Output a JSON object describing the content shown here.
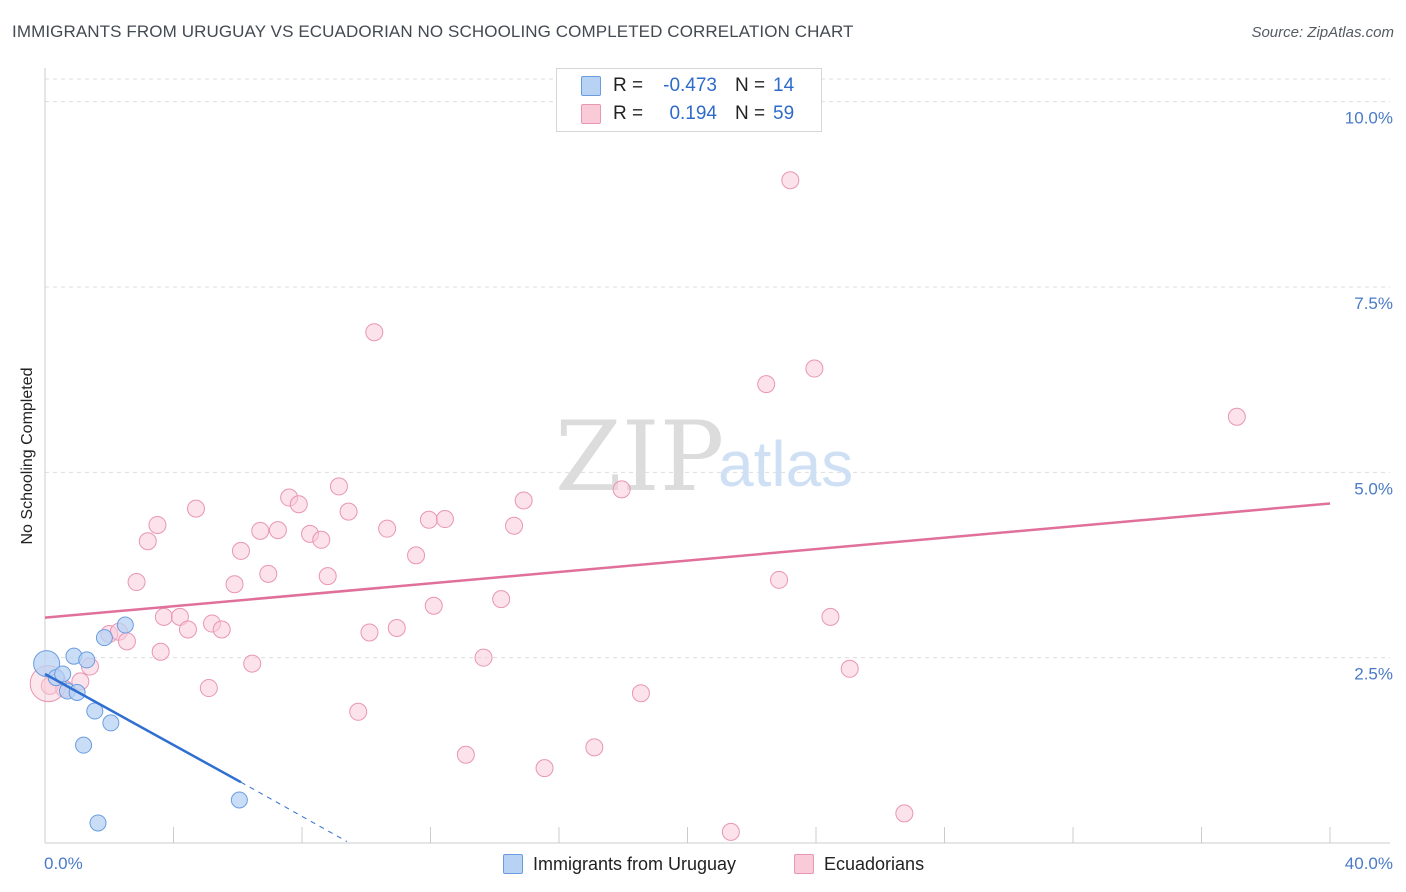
{
  "title": "IMMIGRANTS FROM URUGUAY VS ECUADORIAN NO SCHOOLING COMPLETED CORRELATION CHART",
  "source": "Source: ZipAtlas.com",
  "watermark": {
    "zip": "ZIP",
    "atlas": "atlas"
  },
  "legend": {
    "series": [
      {
        "r_label": "R =",
        "r_value": "-0.473",
        "n_label": "N =",
        "n_value": "14"
      },
      {
        "r_label": "R =",
        "r_value": "0.194",
        "n_label": "N =",
        "n_value": "59"
      }
    ]
  },
  "bottom_legend": [
    "Immigrants from Uruguay",
    "Ecuadorians"
  ],
  "colors": {
    "uruguay_fill": "#b8d2f4",
    "uruguay_stroke": "#6a9de0",
    "uruguay_line": "#2f6fd1",
    "ecuador_fill": "#f9cad8",
    "ecuador_stroke": "#e996b3",
    "ecuador_line": "#e0709a",
    "grid": "#dddddd",
    "axis": "#cccccc",
    "tick_text": "#4a7ac7"
  },
  "chart_data": {
    "type": "scatter",
    "title": "IMMIGRANTS FROM URUGUAY VS ECUADORIAN NO SCHOOLING COMPLETED CORRELATION CHART",
    "xlabel": "",
    "ylabel": "No Schooling Completed",
    "xlim": [
      0,
      40
    ],
    "ylim": [
      0,
      10.4
    ],
    "x_tick_labels": [
      "0.0%",
      "40.0%"
    ],
    "y_ticks": [
      2.5,
      5.0,
      7.5,
      10.0
    ],
    "y_tick_labels": [
      "2.5%",
      "5.0%",
      "7.5%",
      "10.0%"
    ],
    "grid": true,
    "series": [
      {
        "name": "Immigrants from Uruguay",
        "r": -0.473,
        "n": 14,
        "points": [
          [
            0.05,
            2.42
          ],
          [
            0.35,
            2.23
          ],
          [
            0.55,
            2.28
          ],
          [
            0.7,
            2.05
          ],
          [
            0.9,
            2.52
          ],
          [
            1.0,
            2.03
          ],
          [
            1.3,
            2.47
          ],
          [
            1.55,
            1.78
          ],
          [
            1.85,
            2.77
          ],
          [
            2.05,
            1.62
          ],
          [
            2.5,
            2.94
          ],
          [
            1.2,
            1.32
          ],
          [
            1.65,
            0.27
          ],
          [
            6.05,
            0.58
          ]
        ],
        "trend": {
          "x": [
            0,
            6.1
          ],
          "y": [
            2.28,
            0.82
          ]
        },
        "trend_ext": {
          "x": [
            6.1,
            9.4
          ],
          "y": [
            0.82,
            0.02
          ]
        }
      },
      {
        "name": "Ecuadorians",
        "r": 0.194,
        "n": 59,
        "points": [
          [
            0.15,
            2.12
          ],
          [
            0.6,
            2.08
          ],
          [
            1.1,
            2.18
          ],
          [
            1.4,
            2.38
          ],
          [
            2.0,
            2.82
          ],
          [
            2.3,
            2.85
          ],
          [
            2.55,
            2.72
          ],
          [
            2.85,
            3.52
          ],
          [
            3.2,
            4.07
          ],
          [
            3.5,
            4.29
          ],
          [
            3.6,
            2.58
          ],
          [
            3.7,
            3.05
          ],
          [
            4.2,
            3.05
          ],
          [
            4.45,
            2.88
          ],
          [
            4.7,
            4.51
          ],
          [
            5.1,
            2.09
          ],
          [
            5.2,
            2.96
          ],
          [
            5.5,
            2.88
          ],
          [
            5.9,
            3.49
          ],
          [
            6.1,
            3.94
          ],
          [
            6.45,
            2.42
          ],
          [
            6.7,
            4.21
          ],
          [
            6.95,
            3.63
          ],
          [
            7.25,
            4.22
          ],
          [
            7.6,
            4.66
          ],
          [
            7.9,
            4.57
          ],
          [
            8.25,
            4.17
          ],
          [
            8.6,
            4.09
          ],
          [
            8.8,
            3.6
          ],
          [
            9.15,
            4.81
          ],
          [
            9.45,
            4.47
          ],
          [
            9.75,
            1.77
          ],
          [
            10.1,
            2.84
          ],
          [
            10.25,
            6.89
          ],
          [
            10.65,
            4.24
          ],
          [
            10.95,
            2.9
          ],
          [
            11.55,
            3.88
          ],
          [
            11.95,
            4.36
          ],
          [
            12.1,
            3.2
          ],
          [
            12.45,
            4.37
          ],
          [
            13.1,
            1.19
          ],
          [
            13.65,
            2.5
          ],
          [
            14.2,
            3.29
          ],
          [
            14.6,
            4.28
          ],
          [
            14.9,
            4.62
          ],
          [
            15.55,
            1.01
          ],
          [
            17.1,
            1.29
          ],
          [
            17.95,
            4.77
          ],
          [
            18.55,
            2.02
          ],
          [
            21.35,
            0.15
          ],
          [
            22.45,
            6.19
          ],
          [
            22.85,
            3.55
          ],
          [
            23.2,
            8.94
          ],
          [
            23.95,
            6.4
          ],
          [
            24.45,
            3.05
          ],
          [
            25.05,
            2.35
          ],
          [
            26.75,
            0.4
          ],
          [
            37.1,
            5.75
          ],
          [
            0.1,
            2.15
          ]
        ],
        "trend": {
          "x": [
            0,
            40
          ],
          "y": [
            3.04,
            4.58
          ]
        }
      }
    ]
  }
}
